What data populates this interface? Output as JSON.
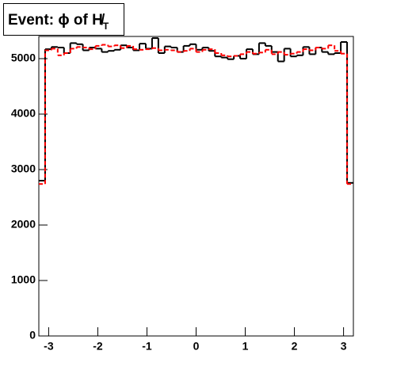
{
  "chart_data": {
    "type": "histogram",
    "title": "Event: ϕ of H̸",
    "title_subscript": "T",
    "bins": [
      -3.2,
      -3.072,
      -2.944,
      -2.816,
      -2.688,
      -2.56,
      -2.432,
      -2.304,
      -2.176,
      -2.048,
      -1.92,
      -1.792,
      -1.664,
      -1.536,
      -1.408,
      -1.28,
      -1.152,
      -1.024,
      -0.896,
      -0.768,
      -0.64,
      -0.512,
      -0.384,
      -0.256,
      -0.128,
      0,
      0.128,
      0.256,
      0.384,
      0.512,
      0.64,
      0.768,
      0.896,
      1.024,
      1.152,
      1.28,
      1.408,
      1.536,
      1.664,
      1.792,
      1.92,
      2.048,
      2.176,
      2.304,
      2.432,
      2.56,
      2.688,
      2.816,
      2.944,
      3.072,
      3.2
    ],
    "series": [
      {
        "color": "#000000",
        "line_style": "solid",
        "values": [
          2800,
          5170,
          5210,
          5200,
          5100,
          5280,
          5260,
          5150,
          5200,
          5180,
          5120,
          5140,
          5160,
          5240,
          5200,
          5150,
          5270,
          5180,
          5370,
          5100,
          5220,
          5200,
          5120,
          5230,
          5260,
          5160,
          5200,
          5140,
          5040,
          5020,
          4990,
          5050,
          5000,
          5170,
          5080,
          5280,
          5230,
          5120,
          4950,
          5180,
          5040,
          5060,
          5210,
          5080,
          5200,
          5120,
          5080,
          5100,
          5300,
          2760
        ]
      },
      {
        "color": "#ff0000",
        "line_style": "dashed",
        "values": [
          2740,
          5150,
          5180,
          5060,
          5100,
          5180,
          5210,
          5200,
          5170,
          5230,
          5250,
          5220,
          5240,
          5190,
          5230,
          5170,
          5160,
          5170,
          5190,
          5150,
          5160,
          5150,
          5120,
          5140,
          5180,
          5120,
          5160,
          5170,
          5100,
          5060,
          5040,
          5050,
          5080,
          5120,
          5090,
          5110,
          5160,
          5080,
          5120,
          5070,
          5090,
          5120,
          5170,
          5150,
          5200,
          5180,
          5240,
          5140,
          5090,
          2740
        ]
      }
    ],
    "xlim": [
      -3.2,
      3.2
    ],
    "xticks": [
      -3,
      -2,
      -1,
      0,
      1,
      2,
      3
    ],
    "ylim": [
      0,
      5400
    ],
    "yticks": [
      0,
      1000,
      2000,
      3000,
      4000,
      5000
    ]
  }
}
